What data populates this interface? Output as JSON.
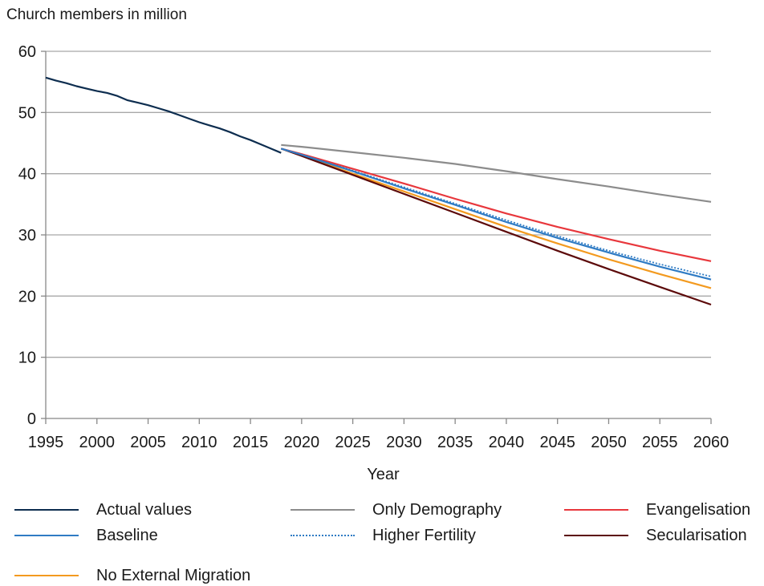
{
  "chart_data": {
    "type": "line",
    "ylabel": "Church members in million",
    "xlabel": "Year",
    "xlim": [
      1995,
      2060
    ],
    "ylim": [
      0,
      60
    ],
    "x_ticks": [
      1995,
      2000,
      2005,
      2010,
      2015,
      2020,
      2025,
      2030,
      2035,
      2040,
      2045,
      2050,
      2055,
      2060
    ],
    "y_ticks": [
      0,
      10,
      20,
      30,
      40,
      50,
      60
    ],
    "grid": "horizontal",
    "legend_position": "bottom",
    "series": [
      {
        "name": "Actual values",
        "color": "#0d2d4f",
        "style": "solid",
        "x": [
          1995,
          1996,
          1997,
          1998,
          1999,
          2000,
          2001,
          2002,
          2003,
          2004,
          2005,
          2006,
          2007,
          2008,
          2009,
          2010,
          2011,
          2012,
          2013,
          2014,
          2015,
          2016,
          2017,
          2018
        ],
        "y": [
          55.7,
          55.2,
          54.8,
          54.3,
          53.9,
          53.5,
          53.2,
          52.7,
          52.0,
          51.6,
          51.2,
          50.7,
          50.2,
          49.6,
          49.0,
          48.4,
          47.9,
          47.4,
          46.8,
          46.1,
          45.5,
          44.8,
          44.1,
          43.4
        ]
      },
      {
        "name": "Only Demography",
        "color": "#8c8c8c",
        "style": "solid",
        "x": [
          2018,
          2020,
          2025,
          2030,
          2035,
          2040,
          2045,
          2050,
          2055,
          2060
        ],
        "y": [
          44.7,
          44.4,
          43.5,
          42.6,
          41.6,
          40.4,
          39.1,
          37.9,
          36.6,
          35.4
        ]
      },
      {
        "name": "Evangelisation",
        "color": "#e8373c",
        "style": "solid",
        "x": [
          2018,
          2020,
          2025,
          2030,
          2035,
          2040,
          2045,
          2050,
          2055,
          2060
        ],
        "y": [
          44.1,
          43.2,
          40.8,
          38.4,
          35.9,
          33.5,
          31.3,
          29.3,
          27.4,
          25.7
        ]
      },
      {
        "name": "Baseline",
        "color": "#2f7bc4",
        "style": "solid",
        "x": [
          2018,
          2020,
          2025,
          2030,
          2035,
          2040,
          2045,
          2050,
          2055,
          2060
        ],
        "y": [
          44.1,
          43.1,
          40.4,
          37.6,
          34.9,
          32.1,
          29.5,
          27.1,
          24.8,
          22.7
        ]
      },
      {
        "name": "Higher Fertility",
        "color": "#2f7bc4",
        "style": "dotted",
        "x": [
          2018,
          2020,
          2025,
          2030,
          2035,
          2040,
          2045,
          2050,
          2055,
          2060
        ],
        "y": [
          44.1,
          43.1,
          40.5,
          37.8,
          35.1,
          32.4,
          29.8,
          27.4,
          25.2,
          23.2
        ]
      },
      {
        "name": "Secularisation",
        "color": "#5c0a0a",
        "style": "solid",
        "x": [
          2018,
          2020,
          2025,
          2030,
          2035,
          2040,
          2045,
          2050,
          2055,
          2060
        ],
        "y": [
          44.1,
          42.9,
          39.8,
          36.7,
          33.6,
          30.5,
          27.4,
          24.4,
          21.5,
          18.6
        ]
      },
      {
        "name": "No External Migration",
        "color": "#f39a1f",
        "style": "solid",
        "x": [
          2018,
          2020,
          2025,
          2030,
          2035,
          2040,
          2045,
          2050,
          2055,
          2060
        ],
        "y": [
          44.1,
          43.0,
          40.0,
          37.1,
          34.2,
          31.3,
          28.6,
          26.0,
          23.6,
          21.3
        ]
      }
    ]
  }
}
